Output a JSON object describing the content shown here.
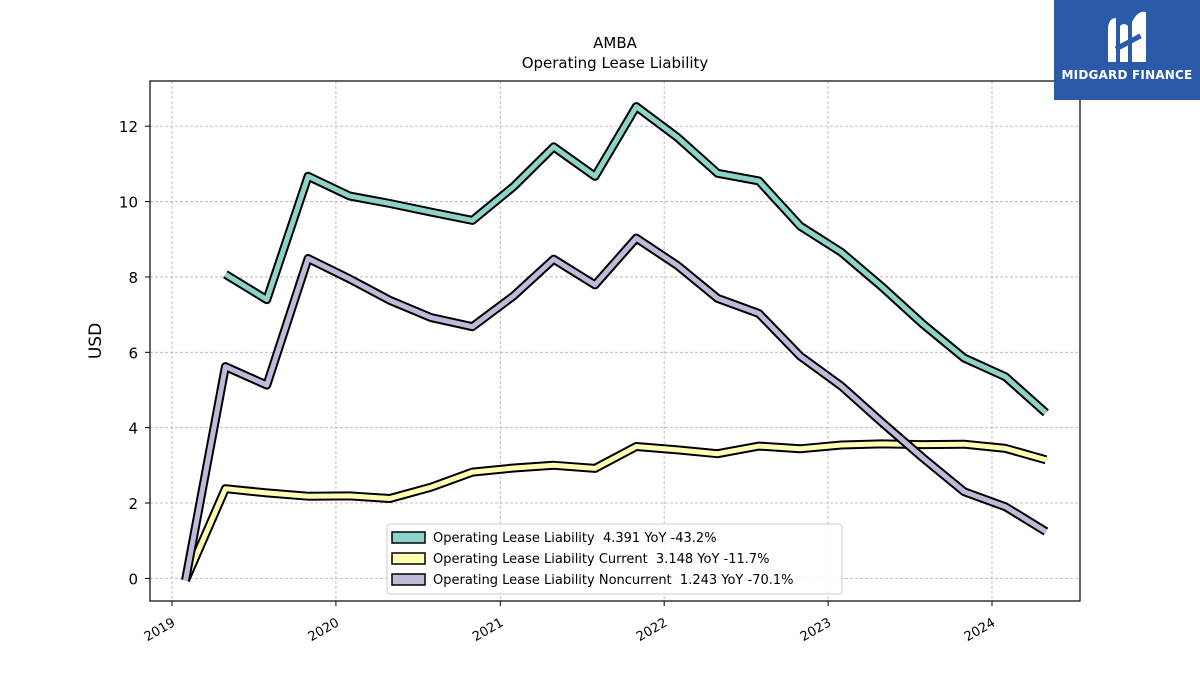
{
  "brand": {
    "name": "MIDGARD FINANCE",
    "bg_color": "#2a5aa8",
    "icon": "midgard-m-logo-icon"
  },
  "chart_data": {
    "type": "line",
    "title": "AMBA",
    "subtitle": "Operating Lease Liability",
    "ylabel": "USD",
    "xlabel": "",
    "xlim": [
      "2018-11-13",
      "2024-07-15"
    ],
    "ylim": [
      -0.6,
      13.2
    ],
    "yticks": [
      0,
      2,
      4,
      6,
      8,
      10,
      12
    ],
    "xticks": [
      "2019",
      "2020",
      "2021",
      "2022",
      "2023",
      "2024"
    ],
    "grid": true,
    "legend_position": "lower center",
    "series": [
      {
        "name": "Operating Lease Liability",
        "legend_label": "Operating Lease Liability  4.391 YoY -43.2%",
        "color": "#8dd3c7",
        "points": [
          [
            "2019-04-30",
            8.07
          ],
          [
            "2019-07-31",
            7.4
          ],
          [
            "2019-10-31",
            10.67
          ],
          [
            "2020-01-31",
            10.15
          ],
          [
            "2020-04-30",
            9.95
          ],
          [
            "2020-07-31",
            9.72
          ],
          [
            "2020-10-31",
            9.5
          ],
          [
            "2021-01-31",
            10.4
          ],
          [
            "2021-04-30",
            11.45
          ],
          [
            "2021-07-31",
            10.67
          ],
          [
            "2021-10-31",
            12.52
          ],
          [
            "2022-01-31",
            11.7
          ],
          [
            "2022-04-30",
            10.75
          ],
          [
            "2022-07-31",
            10.55
          ],
          [
            "2022-10-31",
            9.35
          ],
          [
            "2023-01-31",
            8.65
          ],
          [
            "2023-04-30",
            7.75
          ],
          [
            "2023-07-31",
            6.75
          ],
          [
            "2023-10-31",
            5.85
          ],
          [
            "2024-01-31",
            5.35
          ],
          [
            "2024-04-30",
            4.391
          ]
        ]
      },
      {
        "name": "Operating Lease Liability Current",
        "legend_label": "Operating Lease Liability Current  3.148 YoY -11.7%",
        "color": "#ffffb3",
        "points": [
          [
            "2019-01-31",
            -0.05
          ],
          [
            "2019-04-30",
            2.38
          ],
          [
            "2019-07-31",
            2.27
          ],
          [
            "2019-10-31",
            2.18
          ],
          [
            "2020-01-31",
            2.19
          ],
          [
            "2020-04-30",
            2.12
          ],
          [
            "2020-07-31",
            2.42
          ],
          [
            "2020-10-31",
            2.82
          ],
          [
            "2021-01-31",
            2.93
          ],
          [
            "2021-04-30",
            3.0
          ],
          [
            "2021-07-31",
            2.92
          ],
          [
            "2021-10-31",
            3.5
          ],
          [
            "2022-01-31",
            3.41
          ],
          [
            "2022-04-30",
            3.31
          ],
          [
            "2022-07-31",
            3.51
          ],
          [
            "2022-10-31",
            3.44
          ],
          [
            "2023-01-31",
            3.54
          ],
          [
            "2023-04-30",
            3.57
          ],
          [
            "2023-07-31",
            3.55
          ],
          [
            "2023-10-31",
            3.56
          ],
          [
            "2024-01-31",
            3.45
          ],
          [
            "2024-04-30",
            3.148
          ]
        ]
      },
      {
        "name": "Operating Lease Liability Noncurrent",
        "legend_label": "Operating Lease Liability Noncurrent  1.243 YoY -70.1%",
        "color": "#bebada",
        "points": [
          [
            "2019-01-31",
            -0.05
          ],
          [
            "2019-04-30",
            5.62
          ],
          [
            "2019-07-31",
            5.13
          ],
          [
            "2019-10-31",
            8.49
          ],
          [
            "2020-01-31",
            7.95
          ],
          [
            "2020-04-30",
            7.38
          ],
          [
            "2020-07-31",
            6.92
          ],
          [
            "2020-10-31",
            6.68
          ],
          [
            "2021-01-31",
            7.5
          ],
          [
            "2021-04-30",
            8.47
          ],
          [
            "2021-07-31",
            7.79
          ],
          [
            "2021-10-31",
            9.03
          ],
          [
            "2022-01-31",
            8.3
          ],
          [
            "2022-04-30",
            7.43
          ],
          [
            "2022-07-31",
            7.03
          ],
          [
            "2022-10-31",
            5.9
          ],
          [
            "2023-01-31",
            5.1
          ],
          [
            "2023-04-30",
            4.15
          ],
          [
            "2023-07-31",
            3.2
          ],
          [
            "2023-10-31",
            2.3
          ],
          [
            "2024-01-31",
            1.9
          ],
          [
            "2024-04-30",
            1.243
          ]
        ]
      }
    ]
  }
}
